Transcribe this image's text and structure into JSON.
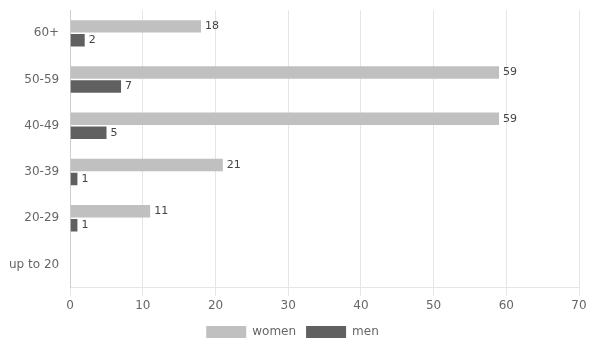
{
  "chart_data": {
    "type": "bar",
    "orientation": "horizontal",
    "categories": [
      "up to 20",
      "20-29",
      "30-39",
      "40-49",
      "50-59",
      "60+"
    ],
    "series": [
      {
        "name": "women",
        "color": "#c0c0c0",
        "values": [
          0,
          11,
          21,
          59,
          59,
          18
        ]
      },
      {
        "name": "men",
        "color": "#606060",
        "values": [
          0,
          1,
          1,
          5,
          7,
          2
        ]
      }
    ],
    "xlim": [
      0,
      70
    ],
    "xticks": [
      0,
      10,
      20,
      30,
      40,
      50,
      60,
      70
    ],
    "grid": true,
    "legend": "bottom",
    "data_labels": true
  }
}
